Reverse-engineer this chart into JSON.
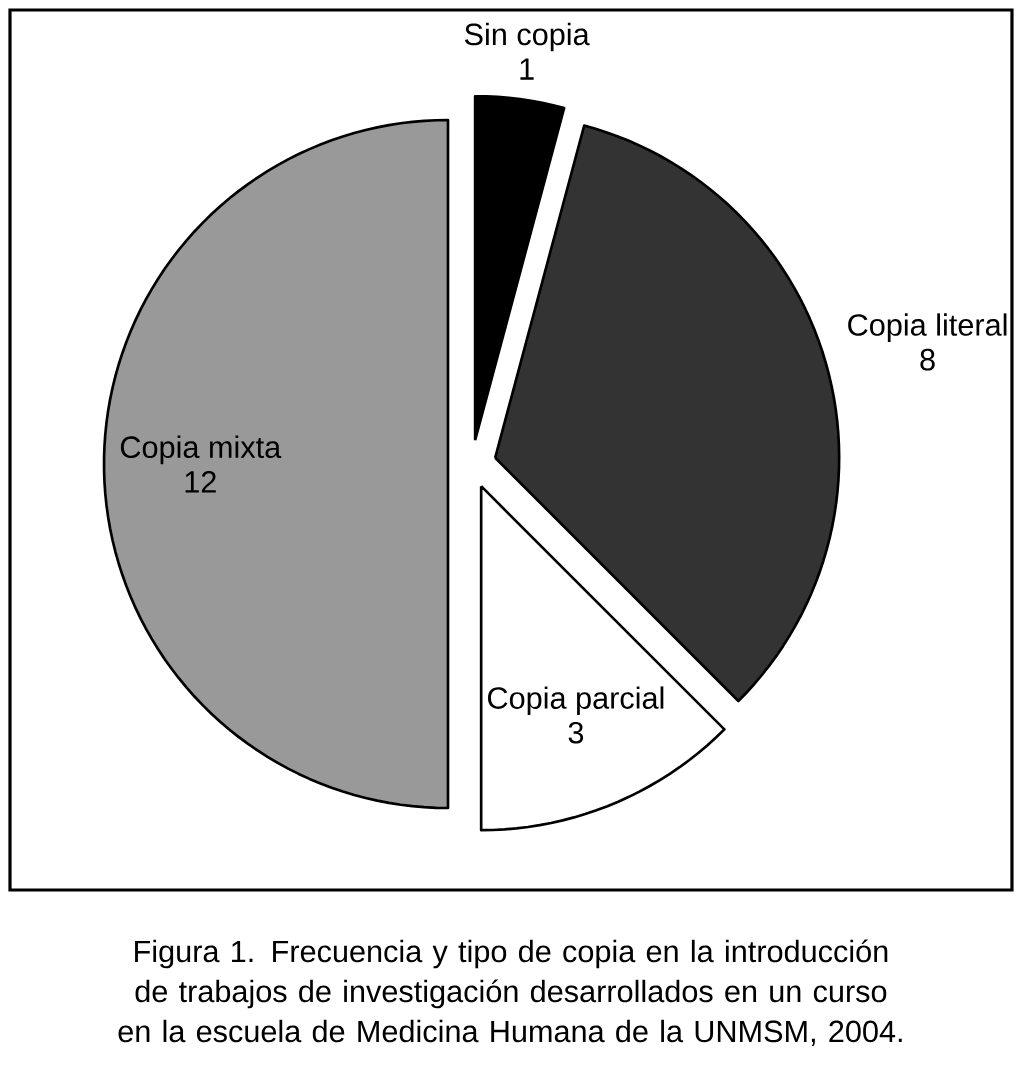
{
  "chart_data": {
    "type": "pie",
    "categories": [
      "Sin copia",
      "Copia literal",
      "Copia parcial",
      "Copia mixta"
    ],
    "values": [
      1,
      8,
      3,
      12
    ],
    "colors": [
      "#000000",
      "#333333",
      "#ffffff",
      "#999999"
    ],
    "data_labels": true,
    "legend": false,
    "annotations": [
      "Figura 1. Frecuencia y tipo de copia en la introducción de trabajos de investigación desarrollados en un curso en la escuela de Medicina Humana de la UNMSM, 2004."
    ]
  }
}
